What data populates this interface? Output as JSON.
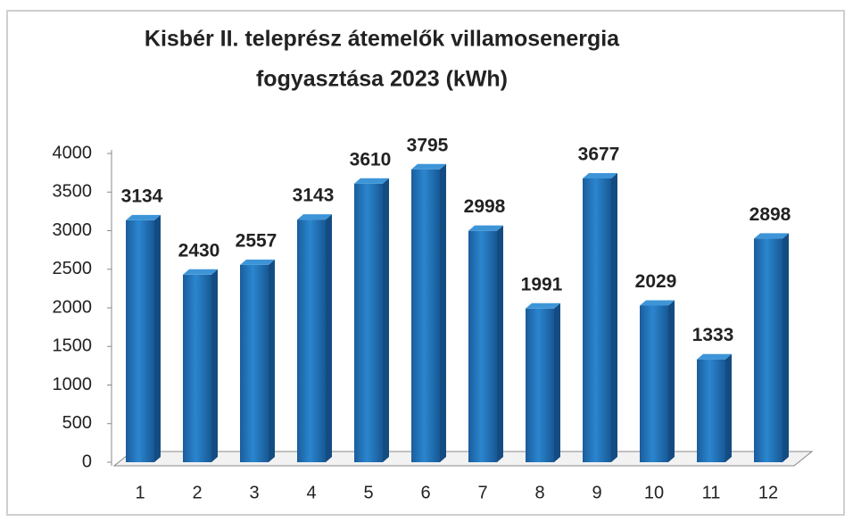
{
  "chart_data": {
    "type": "bar",
    "title": [
      "Kisbér II. teleprész átemelők villamosenergia",
      "fogyasztása 2023 (kWh)"
    ],
    "categories": [
      "1",
      "2",
      "3",
      "4",
      "5",
      "6",
      "7",
      "8",
      "9",
      "10",
      "11",
      "12"
    ],
    "values": [
      3134,
      2430,
      2557,
      3143,
      3610,
      3795,
      2998,
      1991,
      3677,
      2029,
      1333,
      2898
    ],
    "color": "#1f6fb5",
    "ylim": [
      0,
      4000
    ],
    "yticks": [
      0,
      500,
      1000,
      1500,
      2000,
      2500,
      3000,
      3500,
      4000
    ]
  }
}
